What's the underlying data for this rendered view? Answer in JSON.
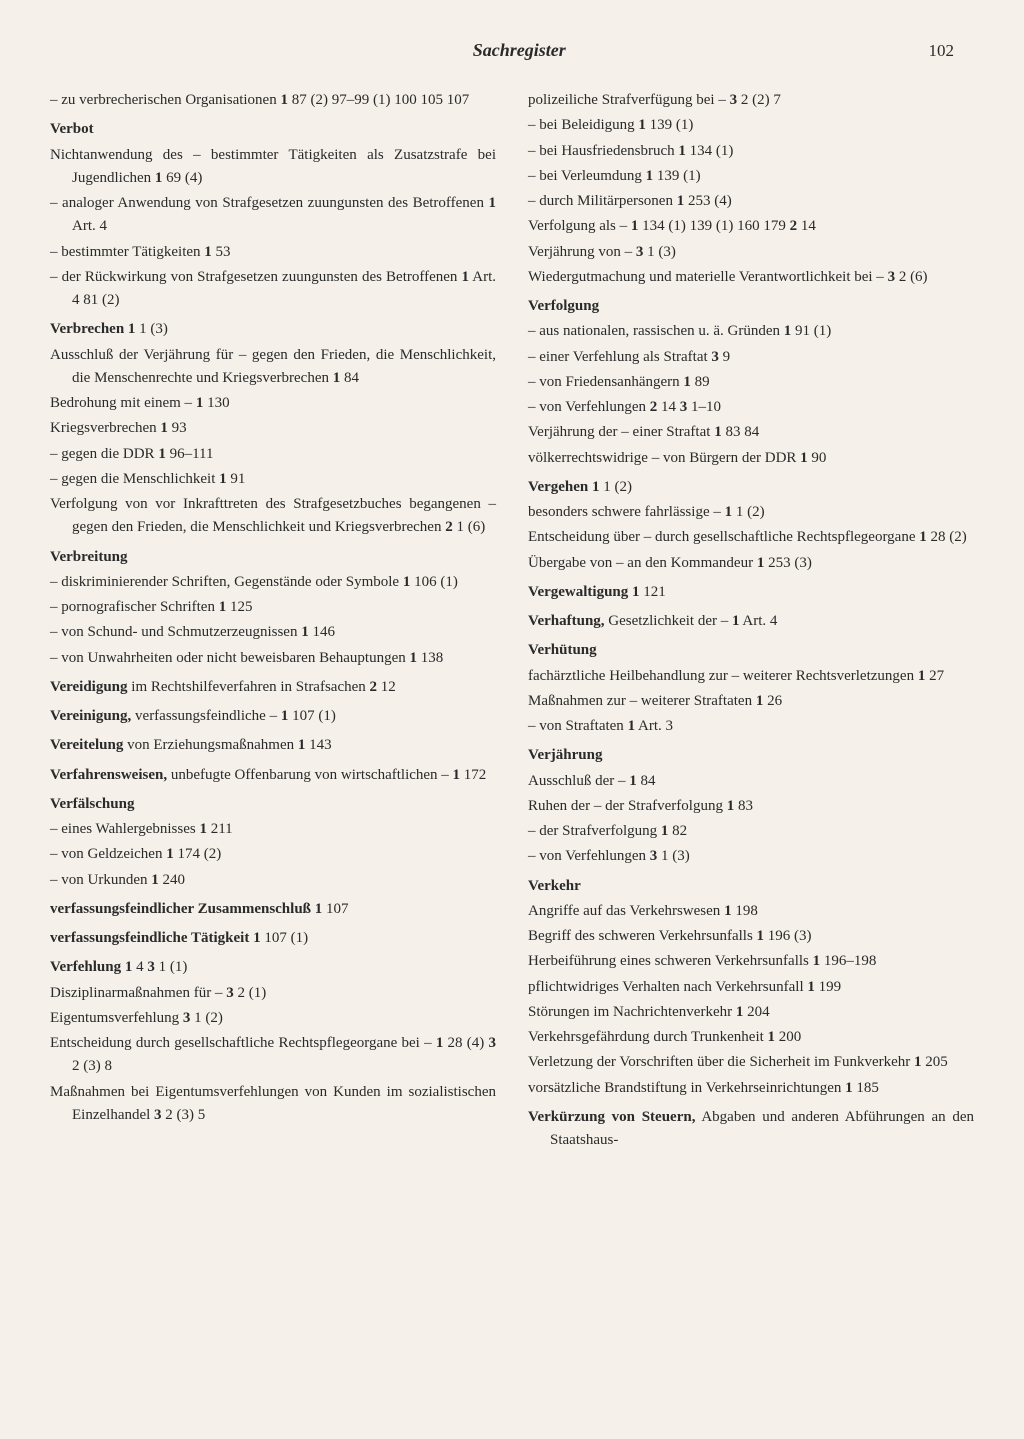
{
  "header": {
    "title": "Sachregister",
    "page": "102"
  },
  "colors": {
    "background": "#f5f1ea",
    "text": "#2a2a2a"
  },
  "typography": {
    "body_fontsize": 15,
    "title_fontsize": 18,
    "line_height": 1.55,
    "font_family": "Georgia, 'Times New Roman', serif"
  },
  "left_col": [
    {
      "html": "– zu verbrecherischen Organisationen <b>1</b> 87 (2) 97–99 (1) 100 105 107"
    },
    {
      "html": "<b>Verbot</b>",
      "headword": true
    },
    {
      "html": "Nichtanwendung des – bestimmter Tätigkeiten als Zusatzstrafe bei Jugendlichen <b>1</b> 69 (4)"
    },
    {
      "html": "– analoger Anwendung von Strafgesetzen zuungunsten des Betroffenen <b>1</b> Art. 4"
    },
    {
      "html": "– bestimmter Tätigkeiten <b>1</b> 53"
    },
    {
      "html": "– der Rückwirkung von Strafgesetzen zuungunsten des Betroffenen <b>1</b> Art. 4 81 (2)"
    },
    {
      "html": "<b>Verbrechen</b> <b>1</b> 1 (3)",
      "headword": true
    },
    {
      "html": "Ausschluß der Verjährung für – gegen den Frieden, die Menschlichkeit, die Menschenrechte und Kriegsverbrechen <b>1</b> 84"
    },
    {
      "html": "Bedrohung mit einem – <b>1</b> 130"
    },
    {
      "html": "Kriegsverbrechen <b>1</b> 93"
    },
    {
      "html": "– gegen die DDR <b>1</b> 96–111"
    },
    {
      "html": "– gegen die Menschlichkeit <b>1</b> 91"
    },
    {
      "html": "Verfolgung von vor Inkrafttreten des Strafgesetzbuches begangenen – gegen den Frieden, die Menschlichkeit und Kriegsverbrechen <b>2</b> 1 (6)"
    },
    {
      "html": "<b>Verbreitung</b>",
      "headword": true
    },
    {
      "html": "– diskriminierender Schriften, Gegenstände oder Symbole <b>1</b> 106 (1)"
    },
    {
      "html": "– pornografischer Schriften <b>1</b> 125"
    },
    {
      "html": "– von Schund- und Schmutzerzeugnissen <b>1</b> 146"
    },
    {
      "html": "– von Unwahrheiten oder nicht beweisbaren Behauptungen <b>1</b> 138"
    },
    {
      "html": "<b>Vereidigung</b> im Rechtshilfeverfahren in Strafsachen <b>2</b> 12",
      "headword": true
    },
    {
      "html": "<b>Vereinigung,</b> verfassungsfeindliche – <b>1</b> 107 (1)",
      "headword": true
    },
    {
      "html": "<b>Vereitelung</b> von Erziehungsmaßnahmen <b>1</b> 143",
      "headword": true
    },
    {
      "html": "<b>Verfahrensweisen,</b> unbefugte Offenbarung von wirtschaftlichen – <b>1</b> 172",
      "headword": true
    },
    {
      "html": "<b>Verfälschung</b>",
      "headword": true
    },
    {
      "html": "– eines Wahlergebnisses <b>1</b> 211"
    },
    {
      "html": "– von Geldzeichen <b>1</b> 174 (2)"
    },
    {
      "html": "– von Urkunden <b>1</b> 240"
    },
    {
      "html": "<b>verfassungsfeindlicher Zusammenschluß</b> <b>1</b> 107",
      "headword": true
    },
    {
      "html": "<b>verfassungsfeindliche Tätigkeit</b> <b>1</b> 107 (1)",
      "headword": true
    },
    {
      "html": "<b>Verfehlung</b> <b>1</b> 4 <b>3</b> 1 (1)",
      "headword": true
    },
    {
      "html": "Disziplinarmaßnahmen für – <b>3</b> 2 (1)"
    },
    {
      "html": "Eigentumsverfehlung <b>3</b> 1 (2)"
    },
    {
      "html": "Entscheidung durch gesellschaftliche Rechtspflegeorgane bei – <b>1</b> 28 (4) <b>3</b> 2 (3) 8"
    },
    {
      "html": "Maßnahmen bei Eigentumsverfehlungen von Kunden im sozialistischen Einzelhandel <b>3</b> 2 (3) 5"
    }
  ],
  "right_col": [
    {
      "html": "polizeiliche Strafverfügung bei – <b>3</b> 2 (2) 7"
    },
    {
      "html": "– bei Beleidigung <b>1</b> 139 (1)"
    },
    {
      "html": "– bei Hausfriedensbruch <b>1</b> 134 (1)"
    },
    {
      "html": "– bei Verleumdung <b>1</b> 139 (1)"
    },
    {
      "html": "– durch Militärpersonen <b>1</b> 253 (4)"
    },
    {
      "html": "Verfolgung als – <b>1</b> 134 (1) 139 (1) 160 179 <b>2</b> 14"
    },
    {
      "html": "Verjährung von – <b>3</b> 1 (3)"
    },
    {
      "html": "Wiedergutmachung und materielle Verantwortlichkeit bei – <b>3</b> 2 (6)"
    },
    {
      "html": "<b>Verfolgung</b>",
      "headword": true
    },
    {
      "html": "– aus nationalen, rassischen u. ä. Gründen <b>1</b> 91 (1)"
    },
    {
      "html": "– einer Verfehlung als Straftat <b>3</b> 9"
    },
    {
      "html": "– von Friedensanhängern <b>1</b> 89"
    },
    {
      "html": "– von Verfehlungen <b>2</b> 14 <b>3</b> 1–10"
    },
    {
      "html": "Verjährung der – einer Straftat <b>1</b> 83 84"
    },
    {
      "html": "völkerrechtswidrige – von Bürgern der DDR <b>1</b> 90"
    },
    {
      "html": "<b>Vergehen</b> <b>1</b> 1 (2)",
      "headword": true
    },
    {
      "html": "besonders schwere fahrlässige – <b>1</b> 1 (2)"
    },
    {
      "html": "Entscheidung über – durch gesellschaftliche Rechtspflegeorgane <b>1</b> 28 (2)"
    },
    {
      "html": "Übergabe von – an den Kommandeur <b>1</b> 253 (3)"
    },
    {
      "html": "<b>Vergewaltigung</b> <b>1</b> 121",
      "headword": true
    },
    {
      "html": "<b>Verhaftung,</b> Gesetzlichkeit der – <b>1</b> Art. 4",
      "headword": true
    },
    {
      "html": "<b>Verhütung</b>",
      "headword": true
    },
    {
      "html": "fachärztliche Heilbehandlung zur – weiterer Rechtsverletzungen <b>1</b> 27"
    },
    {
      "html": "Maßnahmen zur – weiterer Straftaten <b>1</b> 26"
    },
    {
      "html": "– von Straftaten <b>1</b> Art. 3"
    },
    {
      "html": "<b>Verjährung</b>",
      "headword": true
    },
    {
      "html": "Ausschluß der – <b>1</b> 84"
    },
    {
      "html": "Ruhen der – der Strafverfolgung <b>1</b> 83"
    },
    {
      "html": "– der Strafverfolgung <b>1</b> 82"
    },
    {
      "html": "– von Verfehlungen <b>3</b> 1 (3)"
    },
    {
      "html": "<b>Verkehr</b>",
      "headword": true
    },
    {
      "html": "Angriffe auf das Verkehrswesen <b>1</b> 198"
    },
    {
      "html": "Begriff des schweren Verkehrsunfalls <b>1</b> 196 (3)"
    },
    {
      "html": "Herbeiführung eines schweren Verkehrsunfalls <b>1</b> 196–198"
    },
    {
      "html": "pflichtwidriges Verhalten nach Verkehrsunfall <b>1</b> 199"
    },
    {
      "html": "Störungen im Nachrichtenverkehr <b>1</b> 204"
    },
    {
      "html": "Verkehrsgefährdung durch Trunkenheit <b>1</b> 200"
    },
    {
      "html": "Verletzung der Vorschriften über die Sicherheit im Funkverkehr <b>1</b> 205"
    },
    {
      "html": "vorsätzliche Brandstiftung in Verkehrseinrichtungen <b>1</b> 185"
    },
    {
      "html": "<b>Verkürzung von Steuern,</b> Abgaben und anderen Abführungen an den Staatshaus-",
      "headword": true
    }
  ]
}
